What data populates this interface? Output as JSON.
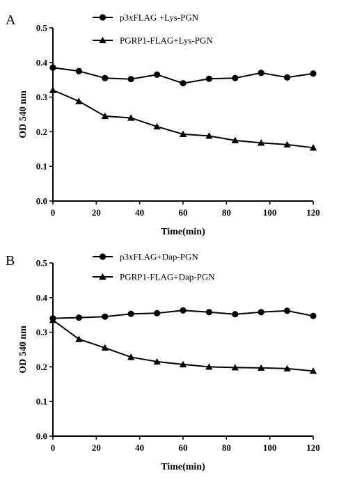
{
  "chart_data": [
    {
      "panel_label": "A",
      "type": "line",
      "xlabel": "Time(min)",
      "ylabel": "OD 540 nm",
      "xlim": [
        0,
        120
      ],
      "ylim": [
        0.0,
        0.5
      ],
      "x_ticks": [
        "0",
        "20",
        "40",
        "60",
        "80",
        "100",
        "120"
      ],
      "y_ticks": [
        "0.0",
        "0.1",
        "0.2",
        "0.3",
        "0.4",
        "0.5"
      ],
      "grid": false,
      "legend_position": "top",
      "x": [
        0,
        12,
        24,
        36,
        48,
        60,
        72,
        84,
        96,
        108,
        120
      ],
      "series": [
        {
          "name": "p3xFLAG +Lys-PGN",
          "marker": "circle",
          "values": [
            0.385,
            0.375,
            0.355,
            0.352,
            0.365,
            0.34,
            0.353,
            0.355,
            0.37,
            0.357,
            0.368
          ]
        },
        {
          "name": "PGRP1-FLAG+Lys-PGN",
          "marker": "triangle",
          "values": [
            0.32,
            0.288,
            0.245,
            0.24,
            0.215,
            0.193,
            0.188,
            0.175,
            0.168,
            0.163,
            0.154
          ]
        }
      ]
    },
    {
      "panel_label": "B",
      "type": "line",
      "xlabel": "Time(min)",
      "ylabel": "OD 540 nm",
      "xlim": [
        0,
        120
      ],
      "ylim": [
        0.0,
        0.5
      ],
      "x_ticks": [
        "0",
        "20",
        "40",
        "60",
        "80",
        "100",
        "120"
      ],
      "y_ticks": [
        "0.0",
        "0.1",
        "0.2",
        "0.3",
        "0.4",
        "0.5"
      ],
      "grid": false,
      "legend_position": "top",
      "x": [
        0,
        12,
        24,
        36,
        48,
        60,
        72,
        84,
        96,
        108,
        120
      ],
      "series": [
        {
          "name": "p3xFLAG+Dap-PGN",
          "marker": "circle",
          "values": [
            0.34,
            0.342,
            0.345,
            0.353,
            0.355,
            0.363,
            0.358,
            0.352,
            0.358,
            0.362,
            0.347
          ]
        },
        {
          "name": "PGRP1-FLAG+Dap-PGN",
          "marker": "triangle",
          "values": [
            0.335,
            0.28,
            0.255,
            0.228,
            0.215,
            0.207,
            0.2,
            0.198,
            0.197,
            0.195,
            0.188
          ]
        }
      ]
    }
  ]
}
